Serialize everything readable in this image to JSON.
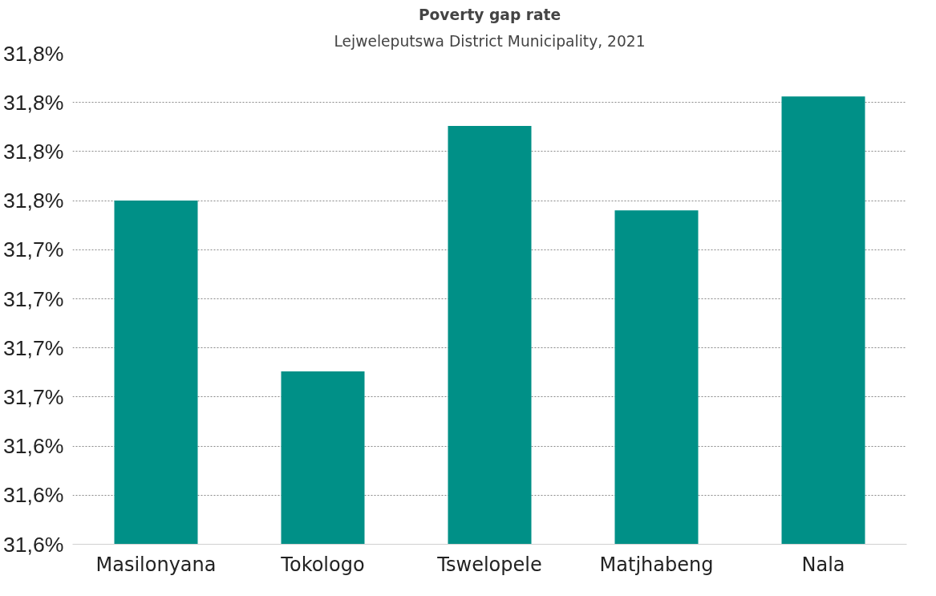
{
  "chart_data": {
    "type": "bar",
    "title": "Poverty gap rate",
    "subtitle": "Lejweleputswa District Municipality, 2021",
    "categories": [
      "Masilonyana",
      "Tokologo",
      "Tswelopele",
      "Matjhabeng",
      "Nala"
    ],
    "values": [
      31.75,
      31.663,
      31.788,
      31.745,
      31.803
    ],
    "color": "#009087",
    "ylim": [
      31.575,
      31.825
    ],
    "yticks": [
      {
        "value": 31.575,
        "label": "31,6%"
      },
      {
        "value": 31.6,
        "label": "31,6%"
      },
      {
        "value": 31.625,
        "label": "31,6%"
      },
      {
        "value": 31.65,
        "label": "31,7%"
      },
      {
        "value": 31.675,
        "label": "31,7%"
      },
      {
        "value": 31.7,
        "label": "31,7%"
      },
      {
        "value": 31.725,
        "label": "31,7%"
      },
      {
        "value": 31.75,
        "label": "31,8%"
      },
      {
        "value": 31.775,
        "label": "31,8%"
      },
      {
        "value": 31.8,
        "label": "31,8%"
      },
      {
        "value": 31.825,
        "label": "31,8%"
      }
    ],
    "grid": "y"
  }
}
